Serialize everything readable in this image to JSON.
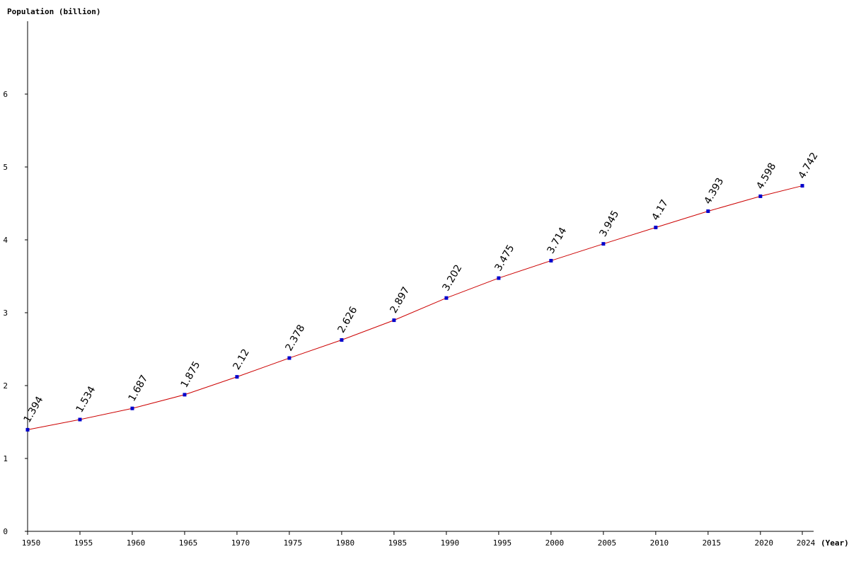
{
  "chart_data": {
    "type": "line",
    "ylabel": "Population (billion)",
    "xlabel": "(Year)",
    "x": [
      1950,
      1955,
      1960,
      1965,
      1970,
      1975,
      1980,
      1985,
      1990,
      1995,
      2000,
      2005,
      2010,
      2015,
      2020,
      2024
    ],
    "series": [
      {
        "values": [
          1.394,
          1.534,
          1.687,
          1.875,
          2.12,
          2.378,
          2.626,
          2.897,
          3.202,
          3.475,
          3.714,
          3.945,
          4.17,
          4.393,
          4.598,
          4.742
        ],
        "labels": [
          "1.394",
          "1.534",
          "1.687",
          "1.875",
          "2.12",
          "2.378",
          "2.626",
          "2.897",
          "3.202",
          "3.475",
          "3.714",
          "3.945",
          "4.17",
          "4.393",
          "4.598",
          "4.742"
        ],
        "line_color": "#cc0000",
        "marker_color": "#0000cc"
      }
    ],
    "yticks": [
      0,
      1,
      2,
      3,
      4,
      5,
      6
    ],
    "ylim": [
      0,
      7
    ],
    "xlim": [
      1950,
      2024
    ],
    "grid": false,
    "legend": "none"
  }
}
